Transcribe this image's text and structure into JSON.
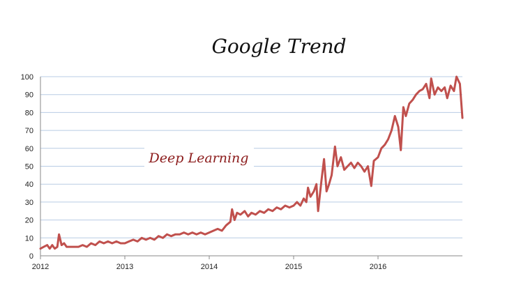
{
  "chart_data": {
    "type": "line",
    "title": "Google Trend",
    "xlabel": "",
    "ylabel": "",
    "ylim": [
      0,
      100
    ],
    "xlim": [
      2012.0,
      2017.0
    ],
    "yticks": [
      0,
      10,
      20,
      30,
      40,
      50,
      60,
      70,
      80,
      90,
      100
    ],
    "xticks": [
      "2012",
      "2013",
      "2014",
      "2015",
      "2016"
    ],
    "grid": "horizontal",
    "line_color": "#c0504d",
    "grid_color": "#b8cce4",
    "annotation": "Deep Learning",
    "series": [
      {
        "name": "Deep Learning",
        "points": [
          [
            2012.0,
            4
          ],
          [
            2012.04,
            5
          ],
          [
            2012.08,
            6
          ],
          [
            2012.11,
            4
          ],
          [
            2012.14,
            6
          ],
          [
            2012.17,
            4
          ],
          [
            2012.2,
            5
          ],
          [
            2012.22,
            12
          ],
          [
            2012.25,
            6
          ],
          [
            2012.28,
            7
          ],
          [
            2012.31,
            5
          ],
          [
            2012.36,
            5
          ],
          [
            2012.4,
            5
          ],
          [
            2012.45,
            5
          ],
          [
            2012.5,
            6
          ],
          [
            2012.55,
            5
          ],
          [
            2012.6,
            7
          ],
          [
            2012.65,
            6
          ],
          [
            2012.7,
            8
          ],
          [
            2012.75,
            7
          ],
          [
            2012.8,
            8
          ],
          [
            2012.85,
            7
          ],
          [
            2012.9,
            8
          ],
          [
            2012.95,
            7
          ],
          [
            2013.0,
            7
          ],
          [
            2013.05,
            8
          ],
          [
            2013.1,
            9
          ],
          [
            2013.15,
            8
          ],
          [
            2013.2,
            10
          ],
          [
            2013.25,
            9
          ],
          [
            2013.3,
            10
          ],
          [
            2013.35,
            9
          ],
          [
            2013.4,
            11
          ],
          [
            2013.45,
            10
          ],
          [
            2013.5,
            12
          ],
          [
            2013.55,
            11
          ],
          [
            2013.6,
            12
          ],
          [
            2013.65,
            12
          ],
          [
            2013.7,
            13
          ],
          [
            2013.75,
            12
          ],
          [
            2013.8,
            13
          ],
          [
            2013.85,
            12
          ],
          [
            2013.9,
            13
          ],
          [
            2013.95,
            12
          ],
          [
            2014.0,
            13
          ],
          [
            2014.05,
            14
          ],
          [
            2014.1,
            15
          ],
          [
            2014.15,
            14
          ],
          [
            2014.2,
            17
          ],
          [
            2014.25,
            19
          ],
          [
            2014.27,
            26
          ],
          [
            2014.3,
            20
          ],
          [
            2014.33,
            24
          ],
          [
            2014.37,
            23
          ],
          [
            2014.42,
            25
          ],
          [
            2014.46,
            22
          ],
          [
            2014.5,
            24
          ],
          [
            2014.55,
            23
          ],
          [
            2014.6,
            25
          ],
          [
            2014.65,
            24
          ],
          [
            2014.7,
            26
          ],
          [
            2014.75,
            25
          ],
          [
            2014.8,
            27
          ],
          [
            2014.85,
            26
          ],
          [
            2014.9,
            28
          ],
          [
            2014.95,
            27
          ],
          [
            2015.0,
            28
          ],
          [
            2015.04,
            30
          ],
          [
            2015.08,
            28
          ],
          [
            2015.12,
            32
          ],
          [
            2015.15,
            30
          ],
          [
            2015.17,
            38
          ],
          [
            2015.2,
            33
          ],
          [
            2015.24,
            36
          ],
          [
            2015.27,
            40
          ],
          [
            2015.29,
            25
          ],
          [
            2015.33,
            42
          ],
          [
            2015.36,
            54
          ],
          [
            2015.39,
            36
          ],
          [
            2015.42,
            40
          ],
          [
            2015.45,
            45
          ],
          [
            2015.49,
            61
          ],
          [
            2015.52,
            50
          ],
          [
            2015.56,
            55
          ],
          [
            2015.6,
            48
          ],
          [
            2015.64,
            50
          ],
          [
            2015.68,
            52
          ],
          [
            2015.72,
            49
          ],
          [
            2015.76,
            52
          ],
          [
            2015.8,
            50
          ],
          [
            2015.84,
            47
          ],
          [
            2015.88,
            50
          ],
          [
            2015.92,
            39
          ],
          [
            2015.95,
            53
          ],
          [
            2016.0,
            55
          ],
          [
            2016.04,
            60
          ],
          [
            2016.08,
            62
          ],
          [
            2016.12,
            65
          ],
          [
            2016.16,
            70
          ],
          [
            2016.2,
            78
          ],
          [
            2016.24,
            72
          ],
          [
            2016.27,
            59
          ],
          [
            2016.3,
            83
          ],
          [
            2016.33,
            78
          ],
          [
            2016.37,
            85
          ],
          [
            2016.41,
            87
          ],
          [
            2016.45,
            90
          ],
          [
            2016.49,
            92
          ],
          [
            2016.53,
            93
          ],
          [
            2016.57,
            96
          ],
          [
            2016.61,
            88
          ],
          [
            2016.63,
            99
          ],
          [
            2016.67,
            90
          ],
          [
            2016.71,
            94
          ],
          [
            2016.75,
            92
          ],
          [
            2016.79,
            94
          ],
          [
            2016.82,
            88
          ],
          [
            2016.86,
            95
          ],
          [
            2016.9,
            92
          ],
          [
            2016.93,
            100
          ],
          [
            2016.97,
            96
          ],
          [
            2017.0,
            77
          ]
        ]
      }
    ]
  }
}
